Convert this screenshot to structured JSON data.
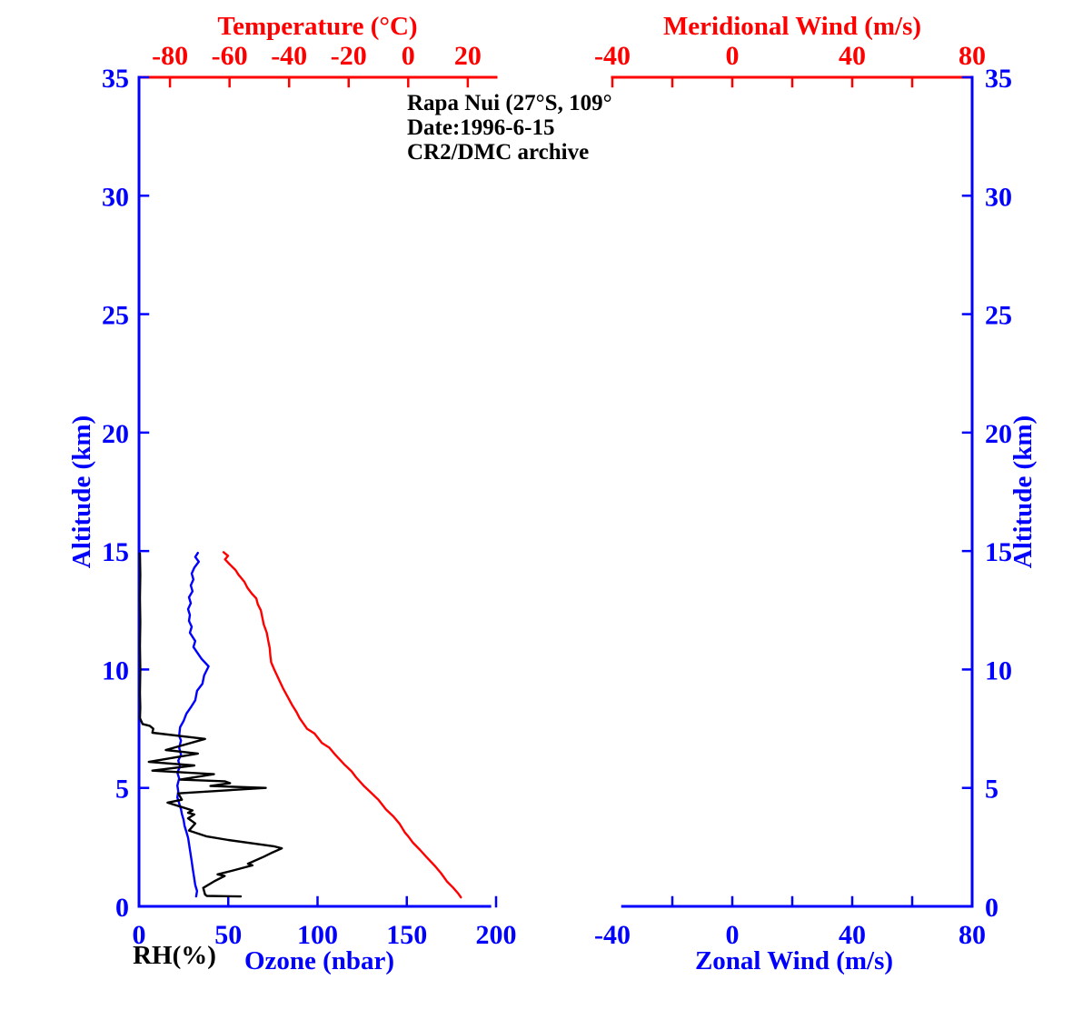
{
  "annotation": {
    "line1": "Rapa Nui (27°S, 109°",
    "line2": "Date:1996-6-15",
    "line3": "CR2/DMC archive"
  },
  "colors": {
    "red": "#ff0000",
    "blue": "#0000ff",
    "black": "#000000"
  },
  "chart_data": [
    {
      "type": "line",
      "panel": "left",
      "axes": {
        "top": {
          "label": "Temperature (°C)",
          "color": "red",
          "tick_marks": [
            -80,
            -60,
            -40,
            -20,
            0,
            20
          ],
          "tick_labels": [
            -80,
            -60,
            -40,
            -20,
            0,
            20
          ],
          "range": [
            -90.4,
            29.5
          ]
        },
        "bottom": {
          "label": "Ozone (nbar)",
          "extra_label": "RH(%)",
          "extra_label_color": "black",
          "color": "blue",
          "tick_marks": [
            0,
            50,
            100,
            150,
            200
          ],
          "tick_labels": [
            0,
            50,
            100,
            150,
            200
          ],
          "range": [
            0,
            200
          ],
          "spine_bounds": [
            0,
            196.5
          ]
        },
        "left": {
          "label": "Altitude (km)",
          "color": "blue",
          "tick_marks": [
            0,
            5,
            10,
            15,
            20,
            25,
            30,
            35
          ],
          "tick_labels": [
            0,
            5,
            10,
            15,
            20,
            25,
            30,
            35
          ],
          "range": [
            0,
            35
          ]
        }
      },
      "series": [
        {
          "name": "temperature",
          "color": "red",
          "x_axis": "top",
          "units": "°C vs km",
          "points": [
            [
              -62,
              14.95
            ],
            [
              -60.5,
              14.8
            ],
            [
              -61.5,
              14.65
            ],
            [
              -60,
              14.45
            ],
            [
              -58,
              14.2
            ],
            [
              -57,
              14.0
            ],
            [
              -55,
              13.7
            ],
            [
              -54,
              13.45
            ],
            [
              -52.5,
              13.2
            ],
            [
              -51,
              13.0
            ],
            [
              -50.5,
              12.75
            ],
            [
              -49.5,
              12.5
            ],
            [
              -49,
              12.2
            ],
            [
              -48.5,
              11.9
            ],
            [
              -47.5,
              11.55
            ],
            [
              -47,
              11.2
            ],
            [
              -46.5,
              10.9
            ],
            [
              -46.3,
              10.6
            ],
            [
              -46,
              10.3
            ],
            [
              -45,
              10.0
            ],
            [
              -43.5,
              9.6
            ],
            [
              -42,
              9.2
            ],
            [
              -40.5,
              8.85
            ],
            [
              -39,
              8.5
            ],
            [
              -37.5,
              8.2
            ],
            [
              -36.5,
              7.95
            ],
            [
              -34,
              7.5
            ],
            [
              -31.5,
              7.3
            ],
            [
              -29,
              6.9
            ],
            [
              -26.5,
              6.7
            ],
            [
              -24.5,
              6.4
            ],
            [
              -21.5,
              6.0
            ],
            [
              -19,
              5.7
            ],
            [
              -17.5,
              5.45
            ],
            [
              -15,
              5.1
            ],
            [
              -12.5,
              4.8
            ],
            [
              -10,
              4.5
            ],
            [
              -7.5,
              4.1
            ],
            [
              -5,
              3.8
            ],
            [
              -3,
              3.5
            ],
            [
              -1,
              3.1
            ],
            [
              0,
              2.96
            ],
            [
              1.5,
              2.7
            ],
            [
              4,
              2.38
            ],
            [
              6,
              2.1
            ],
            [
              9.1,
              1.69
            ],
            [
              11,
              1.4
            ],
            [
              13.1,
              1.04
            ],
            [
              15,
              0.8
            ],
            [
              16.8,
              0.54
            ],
            [
              17.7,
              0.38
            ]
          ]
        },
        {
          "name": "ozone",
          "color": "blue",
          "x_axis": "bottom",
          "units": "nbar vs km",
          "points": [
            [
              33,
              14.92
            ],
            [
              31.5,
              14.75
            ],
            [
              33.5,
              14.55
            ],
            [
              31,
              14.3
            ],
            [
              29.5,
              14.05
            ],
            [
              30.5,
              13.8
            ],
            [
              29,
              13.55
            ],
            [
              30,
              13.3
            ],
            [
              28,
              13.05
            ],
            [
              29,
              12.8
            ],
            [
              27.5,
              12.55
            ],
            [
              28.5,
              12.3
            ],
            [
              28,
              12.05
            ],
            [
              29.5,
              11.8
            ],
            [
              28.5,
              11.55
            ],
            [
              31.5,
              11.2
            ],
            [
              30.5,
              10.95
            ],
            [
              35,
              10.45
            ],
            [
              39,
              10.13
            ],
            [
              36.5,
              9.75
            ],
            [
              35.5,
              9.4
            ],
            [
              32.5,
              9.1
            ],
            [
              31.5,
              8.7
            ],
            [
              29,
              8.4
            ],
            [
              26.5,
              8.13
            ],
            [
              25,
              7.83
            ],
            [
              23,
              7.56
            ],
            [
              22.5,
              7.2
            ],
            [
              23.5,
              7.0
            ],
            [
              22.5,
              6.7
            ],
            [
              23.5,
              6.4
            ],
            [
              22,
              6.15
            ],
            [
              23,
              5.9
            ],
            [
              21.5,
              5.65
            ],
            [
              22.5,
              5.4
            ],
            [
              21.5,
              5.1
            ],
            [
              22,
              4.85
            ],
            [
              21.5,
              4.6
            ],
            [
              22.5,
              4.35
            ],
            [
              23.5,
              4.1
            ],
            [
              24,
              3.9
            ],
            [
              25,
              3.65
            ],
            [
              25.5,
              3.4
            ],
            [
              26.5,
              3.15
            ],
            [
              27.5,
              2.9
            ],
            [
              28,
              2.65
            ],
            [
              28.5,
              2.4
            ],
            [
              29,
              2.15
            ],
            [
              29.5,
              1.9
            ],
            [
              30,
              1.65
            ],
            [
              30.5,
              1.4
            ],
            [
              31,
              1.15
            ],
            [
              31.5,
              0.9
            ],
            [
              32.5,
              0.65
            ],
            [
              32,
              0.42
            ]
          ]
        },
        {
          "name": "relative-humidity",
          "color": "black",
          "x_axis": "bottom",
          "units": "% vs km",
          "points": [
            [
              0.5,
              14.9
            ],
            [
              0.7,
              14.0
            ],
            [
              0.5,
              13.0
            ],
            [
              0.7,
              12.0
            ],
            [
              0.5,
              11.0
            ],
            [
              0.7,
              10.0
            ],
            [
              0.5,
              9.0
            ],
            [
              0.7,
              8.4
            ],
            [
              0.5,
              7.95
            ],
            [
              2,
              7.7
            ],
            [
              6,
              7.62
            ],
            [
              8,
              7.5
            ],
            [
              7.5,
              7.33
            ],
            [
              37,
              7.07
            ],
            [
              15,
              6.6
            ],
            [
              33,
              6.45
            ],
            [
              5.5,
              6.1
            ],
            [
              31,
              5.95
            ],
            [
              7.5,
              5.73
            ],
            [
              42,
              5.58
            ],
            [
              23,
              5.35
            ],
            [
              48,
              5.28
            ],
            [
              51,
              5.2
            ],
            [
              40,
              5.08
            ],
            [
              71,
              5.0
            ],
            [
              22,
              4.77
            ],
            [
              24,
              4.5
            ],
            [
              16,
              4.38
            ],
            [
              24,
              4.19
            ],
            [
              30,
              4.05
            ],
            [
              27.5,
              3.95
            ],
            [
              31,
              3.88
            ],
            [
              27.5,
              3.72
            ],
            [
              31.5,
              3.5
            ],
            [
              28,
              3.2
            ],
            [
              38,
              2.95
            ],
            [
              50,
              2.8
            ],
            [
              76,
              2.53
            ],
            [
              80,
              2.45
            ],
            [
              74,
              2.25
            ],
            [
              70,
              2.1
            ],
            [
              61,
              1.8
            ],
            [
              63.5,
              1.73
            ],
            [
              52,
              1.5
            ],
            [
              44,
              1.35
            ],
            [
              48,
              1.28
            ],
            [
              42,
              1.05
            ],
            [
              36,
              0.78
            ],
            [
              37,
              0.5
            ],
            [
              38,
              0.44
            ],
            [
              57,
              0.42
            ]
          ]
        }
      ]
    },
    {
      "type": "line",
      "panel": "right",
      "axes": {
        "top": {
          "label": "Meridional Wind (m/s)",
          "color": "red",
          "tick_marks": [
            -40,
            -20,
            0,
            20,
            40,
            60,
            80
          ],
          "tick_labels": [
            -40,
            0,
            40,
            80
          ],
          "range": [
            -40,
            80
          ]
        },
        "bottom": {
          "label": "Zonal Wind (m/s)",
          "color": "blue",
          "tick_marks": [
            -20,
            0,
            20,
            40,
            60,
            80
          ],
          "tick_labels": [
            -40,
            0,
            40,
            80
          ],
          "range": [
            -40,
            80
          ],
          "spine_bounds": [
            -36.6,
            80
          ]
        },
        "right": {
          "label": "Altitude (km)",
          "color": "blue",
          "tick_marks": [
            0,
            5,
            10,
            15,
            20,
            25,
            30,
            35
          ],
          "tick_labels": [
            0,
            5,
            10,
            15,
            20,
            25,
            30,
            35
          ],
          "range": [
            0,
            35
          ]
        }
      },
      "series": []
    }
  ]
}
